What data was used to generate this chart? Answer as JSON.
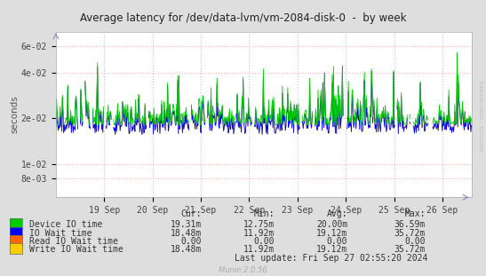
{
  "title": "Average latency for /dev/data-lvm/vm-2084-disk-0  -  by week",
  "ylabel": "seconds",
  "background_color": "#dedede",
  "plot_bg_color": "#ffffff",
  "ymin": 0.006,
  "ymax": 0.075,
  "yticks": [
    0.008,
    0.01,
    0.02,
    0.04,
    0.06
  ],
  "ytick_labels": [
    "8e-03",
    "1e-02",
    "2e-02",
    "4e-02",
    "6e-02"
  ],
  "xlim": [
    0.0,
    8.6
  ],
  "xtick_positions": [
    1,
    2,
    3,
    4,
    5,
    6,
    7,
    8
  ],
  "xtick_labels": [
    "19 Sep",
    "20 Sep",
    "21 Sep",
    "22 Sep",
    "23 Sep",
    "24 Sep",
    "25 Sep",
    "26 Sep"
  ],
  "series": {
    "device_io": {
      "color": "#00cc00",
      "label": "Device IO time"
    },
    "io_wait": {
      "color": "#0000ff",
      "label": "IO Wait time"
    },
    "read_wait": {
      "color": "#ff6600",
      "label": "Read IO Wait time"
    },
    "write_wait": {
      "color": "#ffcc00",
      "label": "Write IO Wait time"
    }
  },
  "legend_headers": [
    "Cur:",
    "Min:",
    "Avg:",
    "Max:"
  ],
  "legend_rows": [
    {
      "label": "Device IO time",
      "color": "#00cc00",
      "vals": [
        "19.31m",
        "12.75m",
        "20.00m",
        "36.59m"
      ]
    },
    {
      "label": "IO Wait time",
      "color": "#0000ff",
      "vals": [
        "18.48m",
        "11.92m",
        "19.12m",
        "35.72m"
      ]
    },
    {
      "label": "Read IO Wait time",
      "color": "#ff6600",
      "vals": [
        "0.00",
        "0.00",
        "0.00",
        "0.00"
      ]
    },
    {
      "label": "Write IO Wait time",
      "color": "#ffcc00",
      "vals": [
        "18.48m",
        "11.92m",
        "19.12m",
        "35.72m"
      ]
    }
  ],
  "last_update": "Last update: Fri Sep 27 02:55:20 2024",
  "munin_label": "Munin 2.0.56",
  "rrdtool_label": "RRDTOOL / TOBI OETIKER",
  "seed": 42
}
